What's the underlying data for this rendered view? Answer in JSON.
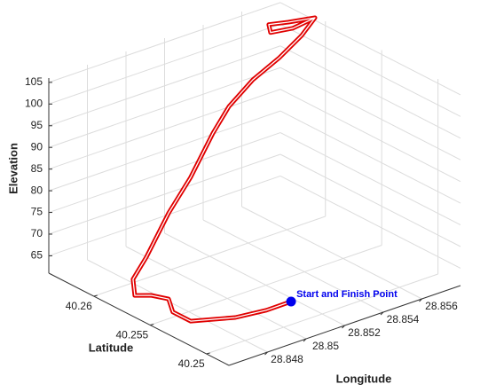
{
  "chart_data": {
    "type": "line3d",
    "xlabel": "Longitude",
    "ylabel": "Latitude",
    "zlabel": "Elevation",
    "xlim": [
      28.846,
      28.858
    ],
    "ylim": [
      40.248,
      40.264
    ],
    "zlim": [
      61,
      106
    ],
    "xticks": [
      28.848,
      28.85,
      28.852,
      28.854,
      28.856
    ],
    "yticks": [
      40.25,
      40.255,
      40.26
    ],
    "zticks": [
      65,
      70,
      75,
      80,
      85,
      90,
      95,
      100,
      105
    ],
    "grid": true,
    "series": [
      {
        "color": "#e00000",
        "x": [
          28.85061,
          28.84942,
          28.84815,
          28.84655,
          28.84642,
          28.84697,
          28.84688,
          28.84661,
          28.84764,
          28.84857,
          28.85006,
          28.85123,
          28.85272,
          28.85364,
          28.85481,
          28.85579,
          28.85688,
          28.85789,
          28.85668,
          28.85596,
          28.85615,
          28.8568,
          28.85789
        ],
        "y": [
          40.25038,
          40.25054,
          40.25112,
          40.25234,
          40.2537,
          40.25502,
          40.25643,
          40.25741,
          40.25933,
          40.25974,
          40.2603,
          40.26037,
          40.26093,
          40.26109,
          40.26098,
          40.2603,
          40.26019,
          40.26074,
          40.26062,
          40.26138,
          40.26186,
          40.26123,
          40.26074
        ],
        "z": [
          65.5,
          65.1,
          64.6,
          64.6,
          65.1,
          65.5,
          64.6,
          63.7,
          63.3,
          66.4,
          73.6,
          79.9,
          87.1,
          91.6,
          96.1,
          100.6,
          104.2,
          106.0,
          105.6,
          104.7,
          105.6,
          106.0,
          106.0
        ]
      }
    ],
    "annotation": {
      "text": "Start and Finish Point",
      "color": "#0000ee",
      "x": 28.85061,
      "y": 40.25038,
      "z": 65.5
    }
  }
}
